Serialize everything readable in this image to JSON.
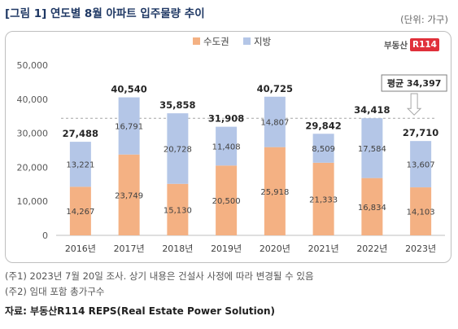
{
  "header": {
    "title": "[그림 1] 연도별 8월 아파트 입주물량 추이",
    "unit": "(단위: 가구)"
  },
  "logo": {
    "text": "부동산",
    "badge": "R114"
  },
  "chart_data": {
    "type": "bar",
    "stacked": true,
    "categories": [
      "2016년",
      "2017년",
      "2018년",
      "2019년",
      "2020년",
      "2021년",
      "2022년",
      "2023년"
    ],
    "series": [
      {
        "name": "수도권",
        "values": [
          14267,
          23749,
          15130,
          20500,
          25918,
          21333,
          16834,
          14103
        ],
        "color": "#f4b183"
      },
      {
        "name": "지방",
        "values": [
          13221,
          16791,
          20728,
          11408,
          14807,
          8509,
          17584,
          13607
        ],
        "color": "#b4c6e7"
      }
    ],
    "totals": [
      27488,
      40540,
      35858,
      31908,
      40725,
      29842,
      34418,
      27710
    ],
    "average": {
      "label": "평균",
      "value": 34397
    },
    "yticks": [
      "0",
      "10,000",
      "20,000",
      "30,000",
      "40,000",
      "50,000"
    ],
    "ylim": [
      0,
      50000
    ],
    "legend": "top-center"
  },
  "notes": [
    "(주1) 2023년 7월 20일 조사. 상기 내용은 건설사 사정에 따라 변경될 수 있음",
    "(주2) 임대 포함 총가구수"
  ],
  "source": "자료: 부동산R114 REPS(Real Estate Power Solution)"
}
